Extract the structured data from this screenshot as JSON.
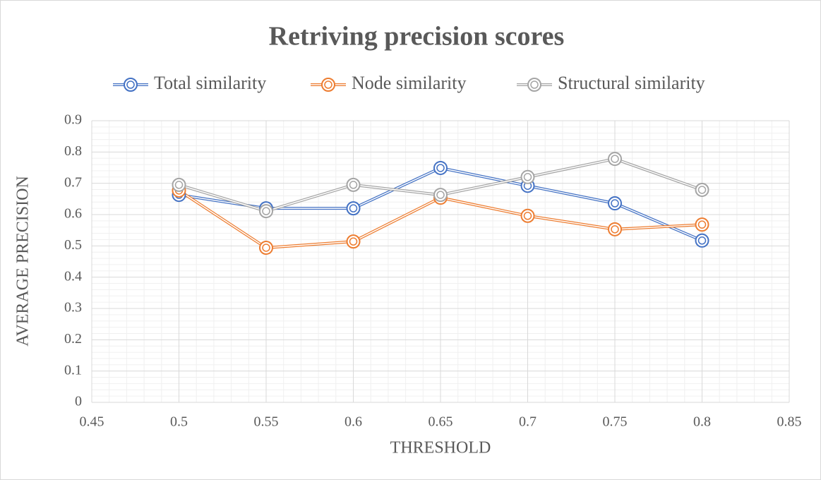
{
  "chart_data": {
    "type": "line",
    "title": "Retriving precision scores",
    "x_label": "THRESHOLD",
    "y_label": "AVERAGE PRECISION",
    "x": [
      0.5,
      0.55,
      0.6,
      0.65,
      0.7,
      0.75,
      0.8
    ],
    "series": [
      {
        "name": "Total similarity",
        "color": "#4472c4",
        "values": [
          0.663,
          0.62,
          0.62,
          0.749,
          0.692,
          0.636,
          0.517
        ]
      },
      {
        "name": "Node similarity",
        "color": "#ed7d31",
        "values": [
          0.677,
          0.494,
          0.514,
          0.654,
          0.596,
          0.553,
          0.568
        ]
      },
      {
        "name": "Structural similarity",
        "color": "#a5a5a5",
        "values": [
          0.695,
          0.611,
          0.695,
          0.663,
          0.72,
          0.778,
          0.679
        ]
      }
    ],
    "xlim": [
      0.45,
      0.85
    ],
    "xticks": [
      0.45,
      0.5,
      0.55,
      0.6,
      0.65,
      0.7,
      0.75,
      0.8,
      0.85
    ],
    "ylim": [
      0,
      0.9
    ],
    "yticks": [
      0,
      0.1,
      0.2,
      0.3,
      0.4,
      0.5,
      0.6,
      0.7,
      0.8,
      0.9
    ],
    "grid": true,
    "minor_grid": true,
    "legend": "top"
  }
}
